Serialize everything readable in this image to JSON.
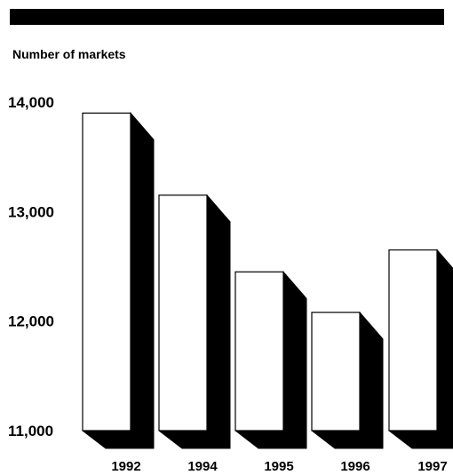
{
  "chart_data": {
    "type": "bar",
    "title": "",
    "xlabel": "",
    "ylabel": "Number of markets",
    "categories": [
      "1992",
      "1994",
      "1995",
      "1996",
      "1997"
    ],
    "values": [
      13900,
      13150,
      12450,
      12080,
      12650
    ],
    "ylim": [
      11000,
      14000
    ],
    "yticks": [
      11000,
      12000,
      13000,
      14000
    ],
    "ytick_labels": [
      "11,000",
      "12,000",
      "13,000",
      "14,000"
    ],
    "grid": false,
    "legend": "none",
    "style": "3d-extruded",
    "colors": {
      "bar_face": "#ffffff",
      "bar_edge": "#000000",
      "bar_shadow": "#000000"
    }
  }
}
